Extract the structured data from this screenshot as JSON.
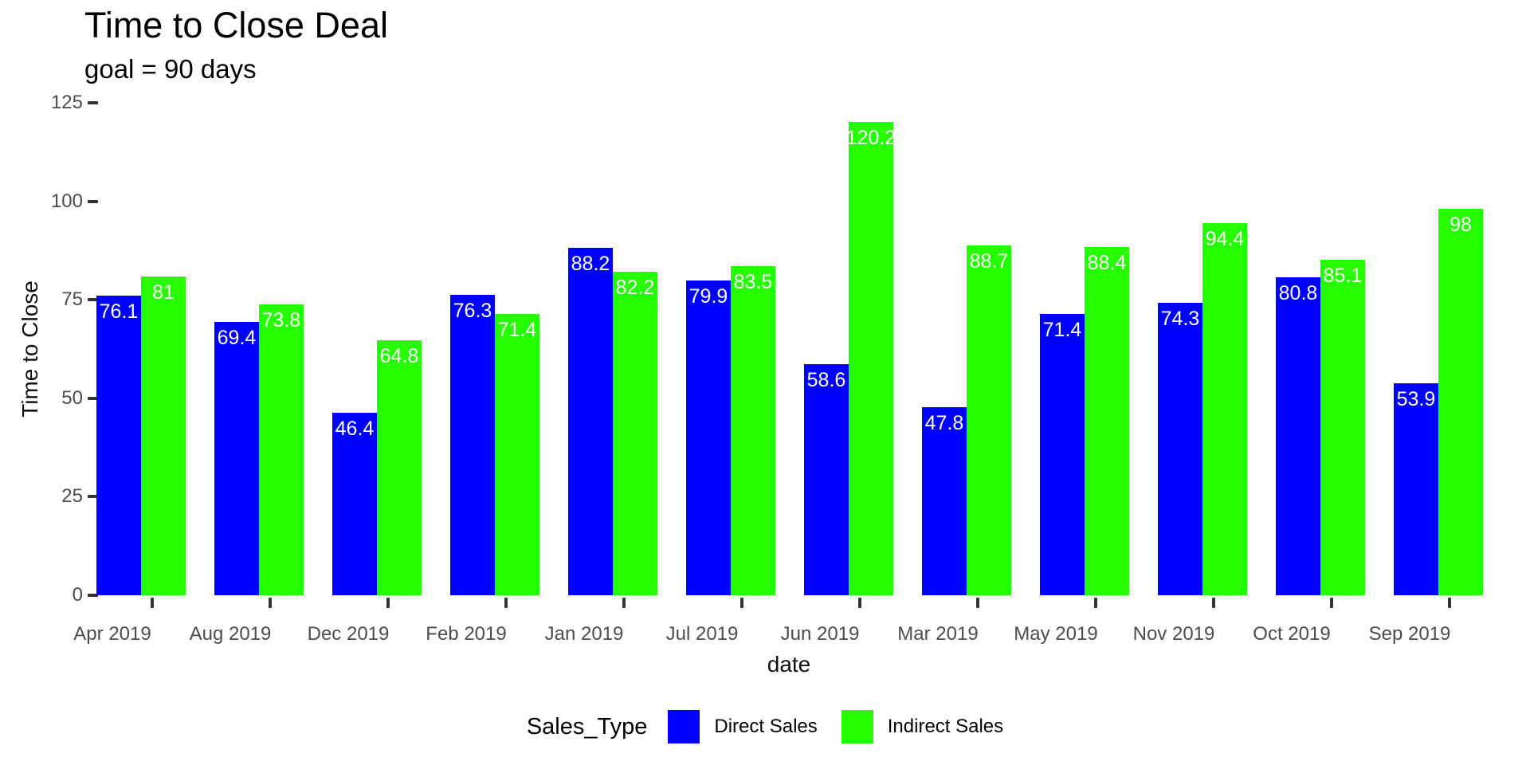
{
  "chart_data": {
    "type": "bar",
    "title": "Time to Close Deal",
    "subtitle": "goal = 90 days",
    "xlabel": "date",
    "ylabel": "Time to Close",
    "legend_title": "Sales_Type",
    "legend_position": "bottom",
    "grid": false,
    "ylim": [
      0,
      125
    ],
    "yticks": [
      0,
      25,
      50,
      75,
      100,
      125
    ],
    "bar_label_color": "#ffffff",
    "categories": [
      "Apr 2019",
      "Aug 2019",
      "Dec 2019",
      "Feb 2019",
      "Jan 2019",
      "Jul 2019",
      "Jun 2019",
      "Mar 2019",
      "May 2019",
      "Nov 2019",
      "Oct 2019",
      "Sep 2019"
    ],
    "series": [
      {
        "name": "Direct Sales",
        "color": "#0000ff",
        "values": [
          76.1,
          69.4,
          46.4,
          76.3,
          88.2,
          79.9,
          58.6,
          47.8,
          71.4,
          74.3,
          80.8,
          53.9
        ]
      },
      {
        "name": "Indirect Sales",
        "color": "#26ff00",
        "values": [
          81,
          73.8,
          64.8,
          71.4,
          82.2,
          83.5,
          120.2,
          88.7,
          88.4,
          94.4,
          85.1,
          98
        ]
      }
    ]
  }
}
